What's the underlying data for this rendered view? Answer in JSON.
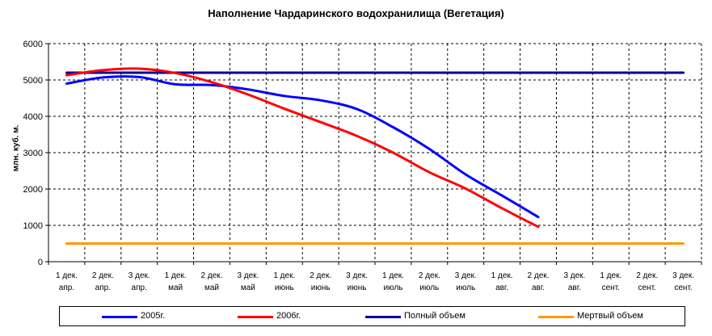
{
  "chart_data": {
    "type": "line",
    "title": "Наполнение Чардаринского водохранилища (Вегетация)",
    "ylabel": "млн. куб. м.",
    "xlabel": "",
    "ylim": [
      0,
      6000
    ],
    "yticks": [
      0,
      1000,
      2000,
      3000,
      4000,
      5000,
      6000
    ],
    "grid": true,
    "legend_position": "bottom",
    "categories": [
      {
        "line1": "1 дек.",
        "line2": "апр."
      },
      {
        "line1": "2 дек.",
        "line2": "апр."
      },
      {
        "line1": "3 дек.",
        "line2": "апр."
      },
      {
        "line1": "1 дек.",
        "line2": "май"
      },
      {
        "line1": "2 дек.",
        "line2": "май"
      },
      {
        "line1": "3 дек.",
        "line2": "май"
      },
      {
        "line1": "1 дек.",
        "line2": "июнь"
      },
      {
        "line1": "2 дек.",
        "line2": "июнь"
      },
      {
        "line1": "3 дек.",
        "line2": "июнь"
      },
      {
        "line1": "1 дек.",
        "line2": "июль"
      },
      {
        "line1": "2 дек.",
        "line2": "июль"
      },
      {
        "line1": "3 дек.",
        "line2": "июль"
      },
      {
        "line1": "1 дек.",
        "line2": "авг."
      },
      {
        "line1": "2 дек.",
        "line2": "авг."
      },
      {
        "line1": "3 дек.",
        "line2": "авг."
      },
      {
        "line1": "1 дек.",
        "line2": "сент."
      },
      {
        "line1": "2 дек.",
        "line2": "сент."
      },
      {
        "line1": "3 дек.",
        "line2": "сент."
      }
    ],
    "series": [
      {
        "name": "2005г.",
        "color": "#0000ff",
        "values": [
          4900,
          5070,
          5080,
          4880,
          4860,
          4740,
          4560,
          4440,
          4200,
          3700,
          3100,
          2400,
          1820,
          1230,
          null,
          null,
          null,
          null
        ]
      },
      {
        "name": "2006г.",
        "color": "#ff0000",
        "values": [
          5130,
          5270,
          5310,
          5190,
          4940,
          4600,
          4210,
          3840,
          3460,
          3000,
          2460,
          2010,
          1470,
          960,
          null,
          null,
          null,
          null
        ]
      },
      {
        "name": "Полный объем",
        "color": "#000099",
        "values": [
          5200,
          5200,
          5200,
          5200,
          5200,
          5200,
          5200,
          5200,
          5200,
          5200,
          5200,
          5200,
          5200,
          5200,
          5200,
          5200,
          5200,
          5200
        ]
      },
      {
        "name": "Мертвый объем",
        "color": "#ff9900",
        "values": [
          500,
          500,
          500,
          500,
          500,
          500,
          500,
          500,
          500,
          500,
          500,
          500,
          500,
          500,
          500,
          500,
          500,
          500
        ]
      }
    ]
  }
}
